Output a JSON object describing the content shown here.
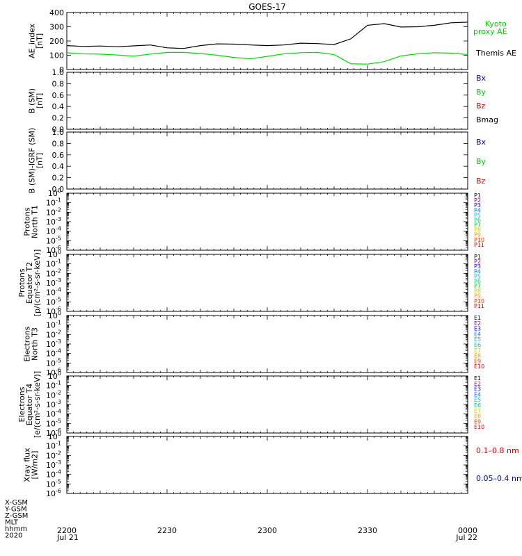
{
  "title": "GOES-17",
  "colors": {
    "black": "#000000",
    "green": "#00dd00",
    "kyoto": "#00cc00",
    "blue": "#0000cc",
    "red": "#dd0000"
  },
  "time_axis": {
    "ticks": [
      "2200",
      "2230",
      "2300",
      "2330",
      "0000"
    ],
    "start_date": "Jul 21",
    "end_date": "Jul 22",
    "row_labels": [
      "X-GSM",
      "Y-GSM",
      "Z-GSM",
      "MLT",
      "hhmm",
      "2020"
    ]
  },
  "panels": [
    {
      "ylabel": [
        "AE_index",
        "[nT]"
      ],
      "yticks": [
        "400",
        "300",
        "200",
        "100",
        "0"
      ],
      "legend": [
        {
          "text": "Kyoto",
          "color": "#00cc00"
        },
        {
          "text": "proxy AE",
          "color": "#00cc00"
        },
        {
          "text": "Themis AE",
          "color": "#000000"
        }
      ]
    },
    {
      "ylabel": [
        "B (SM)",
        "[nT]"
      ],
      "yticks": [
        "1.0",
        "0.8",
        "0.6",
        "0.4",
        "0.2",
        "0.0"
      ],
      "legend": [
        {
          "text": "Bx",
          "color": "#0000cc"
        },
        {
          "text": "By",
          "color": "#00cc00"
        },
        {
          "text": "Bz",
          "color": "#dd0000"
        },
        {
          "text": "Bmag",
          "color": "#000000"
        }
      ]
    },
    {
      "ylabel": [
        "B (SM)-IGRF (SM)",
        "[nT]"
      ],
      "yticks": [
        "1.0",
        "0.8",
        "0.6",
        "0.4",
        "0.2",
        "0.0"
      ],
      "legend": [
        {
          "text": "Bx",
          "color": "#0000cc"
        },
        {
          "text": "By",
          "color": "#00cc00"
        },
        {
          "text": "Bz",
          "color": "#dd0000"
        }
      ]
    },
    {
      "ylabel": [
        "Protons",
        "North T1"
      ],
      "yticks": [
        "0",
        "-1",
        "-2",
        "-3",
        "-4",
        "-5",
        "-6"
      ],
      "channels": [
        "P1",
        "P2",
        "P3",
        "P4",
        "P5",
        "P6",
        "P7",
        "P8",
        "P9",
        "P10",
        "P11"
      ]
    },
    {
      "ylabel": [
        "Protons",
        "Equator T2",
        "[p/(cm²-s-sr-keV)]"
      ],
      "yticks": [
        "0",
        "-1",
        "-2",
        "-3",
        "-4",
        "-5",
        "-6"
      ],
      "channels": [
        "P1",
        "P2",
        "P3",
        "P4",
        "P5",
        "P6",
        "P7",
        "P8",
        "P9",
        "P10",
        "P11"
      ]
    },
    {
      "ylabel": [
        "Electrons",
        "North T3"
      ],
      "yticks": [
        "0",
        "-1",
        "-2",
        "-3",
        "-4",
        "-5",
        "-6"
      ],
      "channels": [
        "E1",
        "E2",
        "E3",
        "E4",
        "E5",
        "E6",
        "E7",
        "E8",
        "E9",
        "E10"
      ]
    },
    {
      "ylabel": [
        "Electrons",
        "Equator T4",
        "[e/(cm²-s-sr-keV)]"
      ],
      "yticks": [
        "0",
        "-1",
        "-2",
        "-3",
        "-4",
        "-5",
        "-6"
      ],
      "channels": [
        "E1",
        "E2",
        "E3",
        "E4",
        "E5",
        "E6",
        "E7",
        "E8",
        "E9",
        "E10"
      ]
    },
    {
      "ylabel": [
        "Xray flux",
        "[W/m2]"
      ],
      "yticks": [
        "0",
        "-1",
        "-2",
        "-3",
        "-4",
        "-5",
        "-6"
      ],
      "legend": [
        {
          "text": "0.1–0.8 nm",
          "color": "#dd0000"
        },
        {
          "text": "0.05–0.4 nm",
          "color": "#0000cc"
        }
      ]
    }
  ],
  "channel_colors_p": [
    "#000000",
    "#880088",
    "#0000cc",
    "#0066ff",
    "#00bbdd",
    "#00cc88",
    "#00cc00",
    "#cccc00",
    "#ff9900",
    "#ff3300",
    "#cc0000"
  ],
  "channel_colors_e": [
    "#000000",
    "#880088",
    "#0000cc",
    "#0066ff",
    "#00bbdd",
    "#00cc88",
    "#cccc00",
    "#ff9900",
    "#ff3300",
    "#cc0000"
  ],
  "chart_data": {
    "type": "line",
    "title": "GOES-17",
    "x": [
      "22:00",
      "22:05",
      "22:10",
      "22:15",
      "22:20",
      "22:25",
      "22:30",
      "22:35",
      "22:40",
      "22:45",
      "22:50",
      "22:55",
      "23:00",
      "23:05",
      "23:10",
      "23:15",
      "23:20",
      "23:25",
      "23:30",
      "23:35",
      "23:40",
      "23:45",
      "23:50",
      "23:55",
      "00:00"
    ],
    "ylim": [
      0,
      400
    ],
    "series": [
      {
        "name": "Themis AE",
        "color": "#000000",
        "values": [
          168,
          162,
          165,
          160,
          166,
          172,
          152,
          148,
          168,
          180,
          178,
          172,
          168,
          172,
          185,
          182,
          175,
          215,
          310,
          322,
          298,
          300,
          310,
          328,
          332
        ]
      },
      {
        "name": "Kyoto proxy AE",
        "color": "#00dd00",
        "values": [
          118,
          110,
          108,
          102,
          94,
          108,
          120,
          120,
          112,
          100,
          85,
          75,
          92,
          110,
          118,
          120,
          105,
          40,
          38,
          55,
          95,
          110,
          118,
          115,
          105
        ]
      }
    ]
  }
}
